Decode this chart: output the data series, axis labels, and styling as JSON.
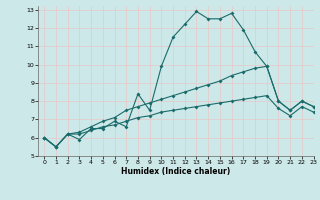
{
  "xlabel": "Humidex (Indice chaleur)",
  "xlim": [
    -0.5,
    23
  ],
  "ylim": [
    5,
    13.2
  ],
  "yticks": [
    5,
    6,
    7,
    8,
    9,
    10,
    11,
    12,
    13
  ],
  "xticks": [
    0,
    1,
    2,
    3,
    4,
    5,
    6,
    7,
    8,
    9,
    10,
    11,
    12,
    13,
    14,
    15,
    16,
    17,
    18,
    19,
    20,
    21,
    22,
    23
  ],
  "bg_color": "#cde8e8",
  "grid_color": "#e8c8c8",
  "line_color": "#1a6b6b",
  "line1_x": [
    0,
    1,
    2,
    3,
    4,
    5,
    6,
    7,
    8,
    9,
    10,
    11,
    12,
    13,
    14,
    15,
    16,
    17,
    18,
    19,
    20,
    21,
    22,
    23
  ],
  "line1_y": [
    6.0,
    5.5,
    6.2,
    5.9,
    6.5,
    6.5,
    6.9,
    6.6,
    8.4,
    7.5,
    9.9,
    11.5,
    12.2,
    12.9,
    12.5,
    12.5,
    12.8,
    11.9,
    10.7,
    9.9,
    8.0,
    7.5,
    8.0,
    7.7
  ],
  "line2_x": [
    0,
    1,
    2,
    3,
    4,
    5,
    6,
    7,
    8,
    9,
    10,
    11,
    12,
    13,
    14,
    15,
    16,
    17,
    18,
    19,
    20,
    21,
    22,
    23
  ],
  "line2_y": [
    6.0,
    5.5,
    6.2,
    6.3,
    6.6,
    6.9,
    7.1,
    7.5,
    7.7,
    7.9,
    8.1,
    8.3,
    8.5,
    8.7,
    8.9,
    9.1,
    9.4,
    9.6,
    9.8,
    9.9,
    8.0,
    7.5,
    8.0,
    7.7
  ],
  "line3_x": [
    0,
    1,
    2,
    3,
    4,
    5,
    6,
    7,
    8,
    9,
    10,
    11,
    12,
    13,
    14,
    15,
    16,
    17,
    18,
    19,
    20,
    21,
    22,
    23
  ],
  "line3_y": [
    6.0,
    5.5,
    6.2,
    6.2,
    6.4,
    6.6,
    6.7,
    6.9,
    7.1,
    7.2,
    7.4,
    7.5,
    7.6,
    7.7,
    7.8,
    7.9,
    8.0,
    8.1,
    8.2,
    8.3,
    7.6,
    7.2,
    7.7,
    7.4
  ]
}
